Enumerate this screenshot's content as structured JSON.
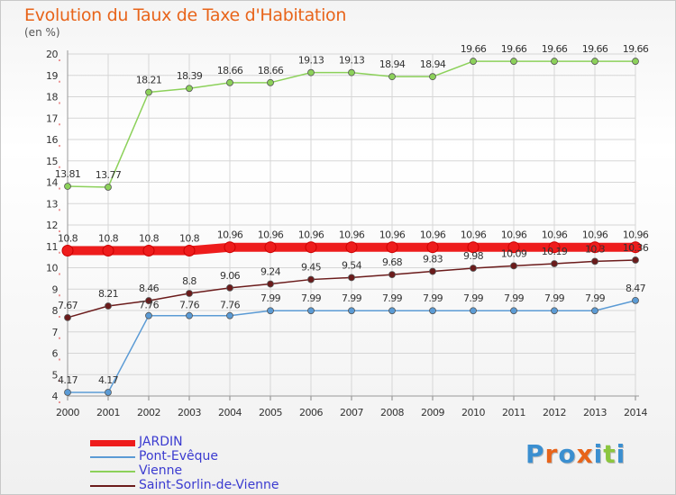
{
  "title": "Evolution du Taux de Taxe d'Habitation",
  "unit_label": "(en %)",
  "logo": {
    "letters": [
      "P",
      "r",
      "o",
      "x",
      "i",
      "t",
      "i"
    ],
    "colors": [
      "#3b8fd0",
      "#e8641a",
      "#3b8fd0",
      "#e8641a",
      "#3b8fd0",
      "#8cc63f",
      "#3b8fd0"
    ]
  },
  "chart_data": {
    "type": "line",
    "title": "Evolution du Taux de Taxe d'Habitation",
    "ylabel": "(en %)",
    "x": [
      "2000",
      "2001",
      "2002",
      "2003",
      "2004",
      "2005",
      "2006",
      "2007",
      "2008",
      "2009",
      "2010",
      "2011",
      "2012",
      "2013",
      "2014"
    ],
    "ylim": [
      4,
      20
    ],
    "yticks": [
      4,
      5,
      6,
      7,
      8,
      9,
      10,
      11,
      12,
      13,
      14,
      15,
      16,
      17,
      18,
      19,
      20
    ],
    "grid": true,
    "legend_position": "bottom-left",
    "series": [
      {
        "name": "JARDIN",
        "color": "#ee1c1c",
        "values": [
          10.8,
          10.8,
          10.8,
          10.8,
          10.96,
          10.96,
          10.96,
          10.96,
          10.96,
          10.96,
          10.96,
          10.96,
          10.96,
          10.96,
          10.96
        ],
        "labels": [
          "10.8",
          "10.8",
          "10.8",
          "10.8",
          "10.96",
          "10.96",
          "10.96",
          "10.96",
          "10.96",
          "10.96",
          "10.96",
          "10.96",
          "10.96",
          "10.96",
          "10.96"
        ]
      },
      {
        "name": "Pont-Evêque",
        "color": "#5b9bd5",
        "values": [
          4.17,
          4.17,
          7.76,
          7.76,
          7.76,
          7.99,
          7.99,
          7.99,
          7.99,
          7.99,
          7.99,
          7.99,
          7.99,
          7.99,
          8.47
        ],
        "labels": [
          "4.17",
          "4.17",
          "7.76",
          "7.76",
          "7.76",
          "7.99",
          "7.99",
          "7.99",
          "7.99",
          "7.99",
          "7.99",
          "7.99",
          "7.99",
          "7.99",
          "8.47"
        ]
      },
      {
        "name": "Vienne",
        "color": "#8cd15a",
        "values": [
          13.81,
          13.77,
          18.21,
          18.39,
          18.66,
          18.66,
          19.13,
          19.13,
          18.94,
          18.94,
          19.66,
          19.66,
          19.66,
          19.66,
          19.66
        ],
        "labels": [
          "13.81",
          "13.77",
          "18.21",
          "18.39",
          "18.66",
          "18.66",
          "19.13",
          "19.13",
          "18.94",
          "18.94",
          "19.66",
          "19.66",
          "19.66",
          "19.66",
          "19.66"
        ]
      },
      {
        "name": "Saint-Sorlin-de-Vienne",
        "color": "#6b1b1b",
        "values": [
          7.67,
          8.21,
          8.46,
          8.8,
          9.06,
          9.24,
          9.45,
          9.54,
          9.68,
          9.83,
          9.98,
          10.09,
          10.19,
          10.3,
          10.36
        ],
        "labels": [
          "7.67",
          "8.21",
          "8.46",
          "8.8",
          "9.06",
          "9.24",
          "9.45",
          "9.54",
          "9.68",
          "9.83",
          "9.98",
          "10.09",
          "10.19",
          "10.3",
          "10.36"
        ]
      }
    ]
  }
}
